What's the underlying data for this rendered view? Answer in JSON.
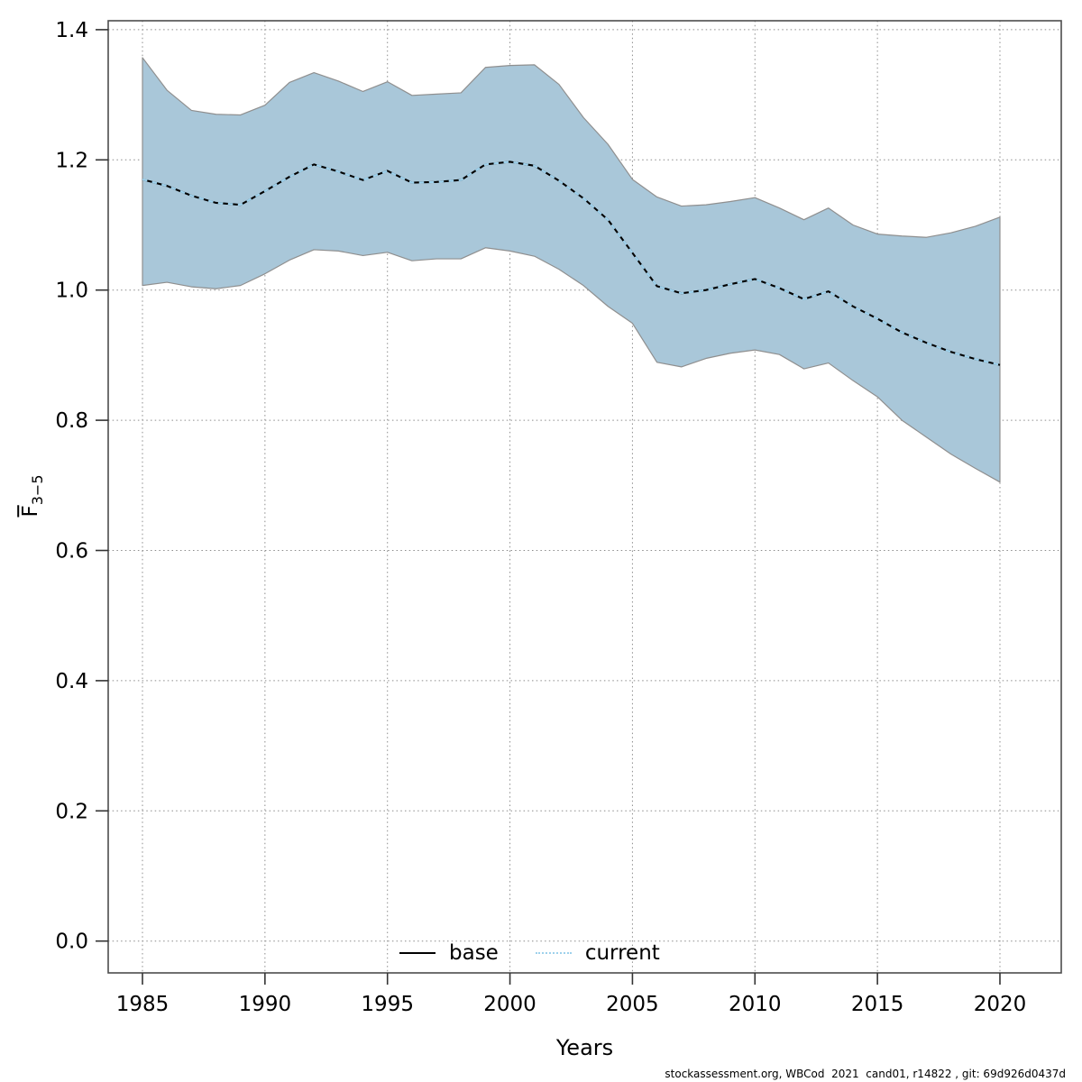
{
  "figure": {
    "xlabel": "Years",
    "ylabel_main": "F",
    "ylabel_sub": "3−5",
    "footer": "stockassessment.org, WBCod  2021  cand01, r14822 , git: 69d926d0437d"
  },
  "legend": {
    "items": [
      {
        "label": "base",
        "style": "solid",
        "color": "#000000"
      },
      {
        "label": "current",
        "style": "dotted",
        "color": "#9ed1ec"
      }
    ]
  },
  "colors": {
    "band_fill": "#a9c7d9",
    "band_border": "#8f8f8f",
    "base_line": "#000000",
    "current_line": "#9ed1ec",
    "grid": "#8c8c8c",
    "box": "#4d4d4d",
    "tick": "#333333",
    "text": "#000000"
  },
  "chart_data": {
    "type": "line",
    "title": "",
    "xlabel": "Years",
    "ylabel": "Fbar(3-5)",
    "grid": true,
    "legend_position": "bottom",
    "xlim": [
      1983.6,
      2021.4
    ],
    "ylim": [
      -0.05,
      1.414
    ],
    "xticks": [
      1985,
      1990,
      1995,
      2000,
      2005,
      2010,
      2015,
      2020
    ],
    "yticks": [
      0.0,
      0.2,
      0.4,
      0.6,
      0.8,
      1.0,
      1.2,
      1.4
    ],
    "x": [
      1985,
      1986,
      1987,
      1988,
      1989,
      1990,
      1991,
      1992,
      1993,
      1994,
      1995,
      1996,
      1997,
      1998,
      1999,
      2000,
      2001,
      2002,
      2003,
      2004,
      2005,
      2006,
      2007,
      2008,
      2009,
      2010,
      2011,
      2012,
      2013,
      2014,
      2015,
      2016,
      2017,
      2018,
      2019,
      2020
    ],
    "series": [
      {
        "name": "base",
        "style": "solid",
        "color": "#000000",
        "values": [
          1.17,
          1.16,
          1.145,
          1.134,
          1.131,
          1.152,
          1.174,
          1.193,
          1.182,
          1.169,
          1.183,
          1.165,
          1.166,
          1.169,
          1.193,
          1.197,
          1.191,
          1.168,
          1.141,
          1.108,
          1.057,
          1.006,
          0.995,
          1.0,
          1.009,
          1.017,
          1.003,
          0.986,
          0.998,
          0.975,
          0.956,
          0.935,
          0.919,
          0.905,
          0.894,
          0.885
        ]
      },
      {
        "name": "current",
        "style": "dotted",
        "color": "#9ed1ec",
        "values": [
          1.17,
          1.16,
          1.145,
          1.134,
          1.131,
          1.152,
          1.174,
          1.193,
          1.182,
          1.169,
          1.183,
          1.165,
          1.166,
          1.169,
          1.193,
          1.197,
          1.191,
          1.168,
          1.141,
          1.108,
          1.057,
          1.006,
          0.995,
          1.0,
          1.009,
          1.017,
          1.003,
          0.986,
          0.998,
          0.975,
          0.956,
          0.935,
          0.919,
          0.905,
          0.894,
          0.885
        ]
      }
    ],
    "band": {
      "name": "current confidence interval",
      "fill": "#a9c7d9",
      "lower": [
        1.007,
        1.012,
        1.005,
        1.002,
        1.007,
        1.025,
        1.046,
        1.062,
        1.06,
        1.053,
        1.058,
        1.045,
        1.048,
        1.048,
        1.065,
        1.06,
        1.052,
        1.032,
        1.007,
        0.975,
        0.949,
        0.889,
        0.882,
        0.895,
        0.903,
        0.908,
        0.901,
        0.879,
        0.888,
        0.861,
        0.836,
        0.8,
        0.774,
        0.748,
        0.726,
        0.705
      ],
      "upper": [
        1.357,
        1.307,
        1.276,
        1.27,
        1.269,
        1.284,
        1.319,
        1.334,
        1.321,
        1.305,
        1.32,
        1.299,
        1.301,
        1.303,
        1.342,
        1.345,
        1.346,
        1.316,
        1.265,
        1.224,
        1.17,
        1.143,
        1.129,
        1.131,
        1.136,
        1.142,
        1.126,
        1.108,
        1.126,
        1.1,
        1.086,
        1.083,
        1.081,
        1.088,
        1.098,
        1.112
      ]
    }
  }
}
